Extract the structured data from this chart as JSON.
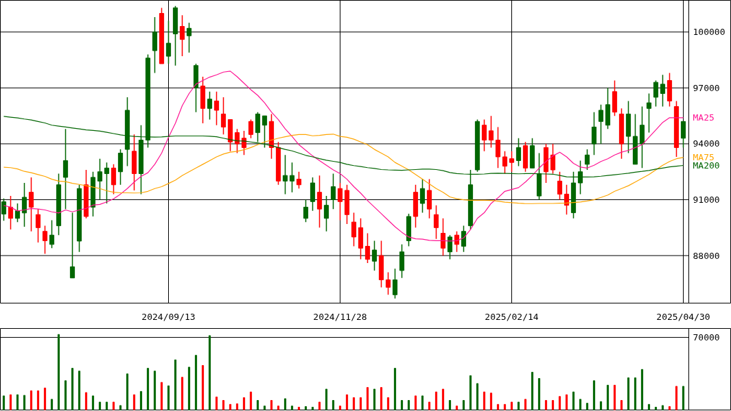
{
  "chart_data": [
    {
      "type": "candlestick",
      "categories": [
        null,
        null,
        null,
        null,
        null,
        null,
        null,
        null,
        null,
        null,
        null,
        null,
        null,
        null,
        null,
        null,
        null,
        null,
        null,
        null,
        null,
        null,
        null,
        null,
        "2024/09/13",
        null,
        null,
        null,
        null,
        null,
        null,
        null,
        null,
        null,
        null,
        null,
        null,
        null,
        null,
        null,
        null,
        null,
        null,
        null,
        null,
        null,
        null,
        null,
        null,
        "2024/11/28",
        null,
        null,
        null,
        null,
        null,
        null,
        null,
        null,
        null,
        null,
        null,
        null,
        null,
        null,
        null,
        null,
        null,
        null,
        null,
        null,
        null,
        null,
        null,
        null,
        "2025/02/14",
        null,
        null,
        null,
        null,
        null,
        null,
        null,
        null,
        null,
        null,
        null,
        null,
        null,
        null,
        null,
        null,
        null,
        null,
        null,
        null,
        null,
        null,
        null,
        null,
        "2025/04/30"
      ],
      "ylim": [
        85450,
        101700
      ],
      "yticks": [
        88000,
        91000,
        94000,
        97000,
        100000
      ],
      "grid": true,
      "series": [
        {
          "type": "candlestick",
          "ohlc": [
            [
              90230,
              91070,
              89870,
              90890
            ],
            [
              90600,
              91200,
              89400,
              90000
            ],
            [
              90000,
              90800,
              89800,
              90400
            ],
            [
              90290,
              91900,
              89550,
              91130
            ],
            [
              91400,
              92200,
              89300,
              90600
            ],
            [
              90200,
              90500,
              88700,
              89500
            ],
            [
              89300,
              89600,
              88100,
              88800
            ],
            [
              88600,
              89900,
              88400,
              89100
            ],
            [
              89600,
              92400,
              89100,
              91800
            ],
            [
              92200,
              94800,
              90500,
              93100
            ],
            [
              86800,
              90300,
              86800,
              87400
            ],
            [
              88780,
              91800,
              88200,
              91600
            ],
            [
              91800,
              92600,
              90000,
              90100
            ],
            [
              90600,
              92500,
              90100,
              92200
            ],
            [
              92000,
              93200,
              91000,
              92500
            ],
            [
              92400,
              93000,
              90800,
              92700
            ],
            [
              92700,
              92900,
              91300,
              91800
            ],
            [
              92500,
              93700,
              91800,
              93500
            ],
            [
              93700,
              96500,
              92800,
              95800
            ],
            [
              93600,
              94500,
              91500,
              92400
            ],
            [
              92400,
              95000,
              91300,
              94200
            ],
            [
              94200,
              98800,
              93800,
              98600
            ],
            [
              99000,
              100800,
              97800,
              100000
            ],
            [
              101000,
              101300,
              98300,
              98300
            ],
            [
              98700,
              100600,
              98300,
              99400
            ],
            [
              99900,
              101400,
              98200,
              101300
            ],
            [
              100300,
              100900,
              98700,
              99600
            ],
            [
              99800,
              100500,
              98900,
              100200
            ],
            [
              97000,
              98300,
              95700,
              98200
            ],
            [
              97100,
              97600,
              95100,
              95900
            ],
            [
              95900,
              96800,
              95300,
              96400
            ],
            [
              96300,
              96800,
              95000,
              95800
            ],
            [
              95600,
              96500,
              94500,
              94900
            ],
            [
              95300,
              95300,
              93600,
              94100
            ],
            [
              94600,
              94800,
              93500,
              94000
            ],
            [
              94300,
              94700,
              93400,
              93800
            ],
            [
              95200,
              95300,
              94300,
              94500
            ],
            [
              94600,
              95700,
              94100,
              95600
            ],
            [
              95000,
              95500,
              93800,
              95500
            ],
            [
              95200,
              95600,
              93200,
              93800
            ],
            [
              93800,
              94100,
              91800,
              92000
            ],
            [
              92000,
              93400,
              91300,
              92300
            ],
            [
              92000,
              93000,
              91400,
              92300
            ],
            [
              92100,
              92500,
              91600,
              91800
            ],
            [
              90000,
              91000,
              89800,
              90600
            ],
            [
              90900,
              92200,
              90400,
              91900
            ],
            [
              91400,
              92300,
              89500,
              90500
            ],
            [
              90000,
              91200,
              89300,
              90700
            ],
            [
              91000,
              92400,
              90500,
              91700
            ],
            [
              91600,
              91900,
              89900,
              90900
            ],
            [
              91500,
              91800,
              89700,
              90200
            ],
            [
              89800,
              90300,
              88500,
              89000
            ],
            [
              89500,
              90000,
              87800,
              88400
            ],
            [
              88500,
              89200,
              87600,
              87800
            ],
            [
              87700,
              88800,
              87200,
              88300
            ],
            [
              88000,
              88800,
              86300,
              86700
            ],
            [
              86700,
              87100,
              85900,
              86300
            ],
            [
              85900,
              87300,
              85700,
              86700
            ],
            [
              87200,
              88600,
              86800,
              88200
            ],
            [
              88800,
              90250,
              88500,
              90100
            ],
            [
              91400,
              91800,
              89500,
              90100
            ],
            [
              90800,
              92100,
              90300,
              91600
            ],
            [
              91500,
              92100,
              90000,
              90500
            ],
            [
              90200,
              90700,
              88900,
              89500
            ],
            [
              89200,
              90000,
              88000,
              88400
            ],
            [
              88200,
              89100,
              87800,
              89000
            ],
            [
              89100,
              89300,
              88200,
              88600
            ],
            [
              88500,
              89600,
              88200,
              89300
            ],
            [
              89600,
              92600,
              89400,
              91800
            ],
            [
              92600,
              95300,
              92500,
              95200
            ],
            [
              95000,
              95300,
              93600,
              94200
            ],
            [
              94700,
              95500,
              93800,
              94200
            ],
            [
              94200,
              94900,
              92700,
              93300
            ],
            [
              93300,
              93600,
              92400,
              92800
            ],
            [
              93200,
              93600,
              92500,
              93000
            ],
            [
              93100,
              94300,
              92800,
              93800
            ],
            [
              93900,
              94100,
              92500,
              92700
            ],
            [
              92700,
              94300,
              92700,
              93900
            ],
            [
              91200,
              93500,
              91000,
              92400
            ],
            [
              93800,
              94000,
              91900,
              92500
            ],
            [
              93400,
              94000,
              92400,
              92600
            ],
            [
              92000,
              92500,
              91000,
              91300
            ],
            [
              91300,
              91800,
              90200,
              90700
            ],
            [
              90300,
              92500,
              90000,
              91900
            ],
            [
              91900,
              93100,
              91300,
              92500
            ],
            [
              92900,
              93700,
              92600,
              93400
            ],
            [
              94000,
              95700,
              93400,
              94900
            ],
            [
              95200,
              96100,
              94000,
              95800
            ],
            [
              95000,
              97000,
              94800,
              96100
            ],
            [
              96800,
              97400,
              95500,
              95700
            ],
            [
              95600,
              95900,
              93200,
              94000
            ],
            [
              94400,
              96300,
              93500,
              95600
            ],
            [
              92900,
              95600,
              92900,
              94400
            ],
            [
              94000,
              96000,
              92700,
              95000
            ],
            [
              95900,
              96700,
              94600,
              96200
            ],
            [
              96500,
              97400,
              96000,
              97300
            ],
            [
              96700,
              97700,
              96000,
              97200
            ],
            [
              97400,
              97800,
              96000,
              96300
            ],
            [
              96000,
              96300,
              93300,
              93800
            ],
            [
              94300,
              95200,
              93800,
              95200
            ]
          ],
          "colors": [
            "#006600",
            "#ff0000",
            "#006600",
            "#006600",
            "#ff0000",
            "#ff0000",
            "#ff0000",
            "#006600",
            "#006600",
            "#006600",
            "#006600",
            "#006600",
            "#ff0000",
            "#006600",
            "#006600",
            "#006600",
            "#ff0000",
            "#006600",
            "#006600",
            "#ff0000",
            "#006600",
            "#006600",
            "#006600",
            "#ff0000",
            "#006600",
            "#006600",
            "#ff0000",
            "#006600",
            "#006600",
            "#ff0000",
            "#006600",
            "#ff0000",
            "#ff0000",
            "#ff0000",
            "#ff0000",
            "#ff0000",
            "#ff0000",
            "#006600",
            "#006600",
            "#ff0000",
            "#ff0000",
            "#006600",
            "#006600",
            "#ff0000",
            "#006600",
            "#006600",
            "#ff0000",
            "#006600",
            "#006600",
            "#ff0000",
            "#ff0000",
            "#ff0000",
            "#ff0000",
            "#ff0000",
            "#006600",
            "#ff0000",
            "#ff0000",
            "#006600",
            "#006600",
            "#006600",
            "#ff0000",
            "#006600",
            "#ff0000",
            "#ff0000",
            "#ff0000",
            "#006600",
            "#ff0000",
            "#006600",
            "#006600",
            "#006600",
            "#ff0000",
            "#ff0000",
            "#ff0000",
            "#ff0000",
            "#ff0000",
            "#006600",
            "#ff0000",
            "#006600",
            "#006600",
            "#ff0000",
            "#ff0000",
            "#ff0000",
            "#ff0000",
            "#006600",
            "#006600",
            "#006600",
            "#006600",
            "#006600",
            "#006600",
            "#ff0000",
            "#ff0000",
            "#006600",
            "#006600",
            "#006600",
            "#006600",
            "#006600",
            "#006600",
            "#ff0000",
            "#ff0000",
            "#006600"
          ]
        },
        {
          "type": "line",
          "name": "MA25",
          "color": "#ff1493",
          "values": [
            90690,
            90600,
            90400,
            90450,
            90530,
            90500,
            90450,
            90350,
            90290,
            90450,
            90350,
            90450,
            90530,
            90710,
            90750,
            90880,
            91050,
            91300,
            91600,
            91950,
            92250,
            92450,
            92900,
            93500,
            94350,
            95100,
            96050,
            96700,
            97200,
            97400,
            97580,
            97700,
            97850,
            97900,
            97600,
            97250,
            96900,
            96600,
            96200,
            95700,
            95300,
            94800,
            94400,
            93950,
            93650,
            93350,
            93100,
            92850,
            92600,
            92400,
            92100,
            91700,
            91350,
            90950,
            90600,
            90250,
            89900,
            89550,
            89250,
            89000,
            88900,
            88880,
            88820,
            88800,
            88800,
            88780,
            88800,
            88950,
            89400,
            90000,
            90300,
            90800,
            91100,
            91450,
            91550,
            91650,
            91950,
            92300,
            92700,
            93050,
            93350,
            93550,
            93300,
            92950,
            92750,
            92700,
            92850,
            93050,
            93200,
            93400,
            93550,
            93650,
            93800,
            93950,
            94350,
            94750,
            95150,
            95400,
            95400,
            95400
          ]
        },
        {
          "type": "line",
          "name": "MA75",
          "color": "#ffa500",
          "values": [
            92740,
            92720,
            92650,
            92520,
            92450,
            92350,
            92250,
            92100,
            92000,
            91970,
            91880,
            91820,
            91750,
            91680,
            91600,
            91480,
            91400,
            91370,
            91370,
            91360,
            91370,
            91450,
            91600,
            91700,
            91870,
            92050,
            92300,
            92500,
            92700,
            92900,
            93100,
            93300,
            93450,
            93550,
            93600,
            93680,
            93800,
            93950,
            94100,
            94200,
            94300,
            94380,
            94450,
            94500,
            94500,
            94430,
            94450,
            94500,
            94520,
            94400,
            94350,
            94250,
            94100,
            93950,
            93700,
            93500,
            93300,
            93000,
            92800,
            92600,
            92350,
            92100,
            91850,
            91600,
            91400,
            91150,
            91050,
            91000,
            90970,
            90970,
            90970,
            90960,
            90920,
            90870,
            90840,
            90810,
            90790,
            90790,
            90800,
            90800,
            90800,
            90810,
            90820,
            90850,
            90880,
            90930,
            91000,
            91120,
            91250,
            91450,
            91600,
            91750,
            91950,
            92150,
            92350,
            92600,
            92850,
            93050,
            93200,
            93270
          ]
        },
        {
          "type": "line",
          "name": "MA200",
          "color": "#006400",
          "values": [
            95470,
            95430,
            95390,
            95330,
            95280,
            95200,
            95120,
            95000,
            94950,
            94900,
            94850,
            94800,
            94750,
            94720,
            94680,
            94620,
            94550,
            94480,
            94430,
            94400,
            94380,
            94370,
            94360,
            94370,
            94400,
            94420,
            94420,
            94420,
            94420,
            94420,
            94410,
            94380,
            94300,
            94220,
            94160,
            94150,
            94100,
            94050,
            93980,
            93900,
            93800,
            93700,
            93620,
            93500,
            93380,
            93300,
            93200,
            93120,
            93060,
            93000,
            92900,
            92830,
            92780,
            92720,
            92680,
            92620,
            92600,
            92590,
            92580,
            92600,
            92620,
            92640,
            92640,
            92620,
            92560,
            92460,
            92400,
            92380,
            92370,
            92370,
            92380,
            92410,
            92420,
            92410,
            92400,
            92390,
            92400,
            92400,
            92390,
            92380,
            92370,
            92300,
            92230,
            92220,
            92220,
            92220,
            92230,
            92260,
            92300,
            92340,
            92380,
            92420,
            92480,
            92520,
            92570,
            92640,
            92700,
            92760,
            92800,
            92840
          ]
        }
      ]
    },
    {
      "type": "bar",
      "categories": [
        null,
        null,
        null,
        null,
        null,
        null,
        null,
        null,
        null,
        null,
        null,
        null,
        null,
        null,
        null,
        null,
        null,
        null,
        null,
        null,
        null,
        null,
        null,
        null,
        null,
        null,
        null,
        null,
        null,
        null,
        null,
        null,
        null,
        null,
        null,
        null,
        null,
        null,
        null,
        null,
        null,
        null,
        null,
        null,
        null,
        null,
        null,
        null,
        null,
        null,
        null,
        null,
        null,
        null,
        null,
        null,
        null,
        null,
        null,
        null,
        null,
        null,
        null,
        null,
        null,
        null,
        null,
        null,
        null,
        null,
        null,
        null,
        null,
        null,
        null,
        null,
        null,
        null,
        null,
        null,
        null,
        null,
        null,
        null,
        null,
        null,
        null,
        null,
        null,
        null,
        null,
        null,
        null,
        null,
        null,
        null,
        null,
        null,
        null,
        null
      ],
      "ylim": [
        0,
        78600
      ],
      "yticks": [
        {
          "value": 0,
          "label": null
        },
        70000
      ],
      "grid": "y",
      "tick_labels": "y",
      "values": [
        13600,
        14700,
        14700,
        14100,
        18500,
        18500,
        21200,
        10300,
        72800,
        28200,
        40200,
        37500,
        16800,
        13600,
        7600,
        7600,
        7600,
        4300,
        34800,
        14700,
        17900,
        40200,
        37500,
        26600,
        23300,
        48300,
        31500,
        41300,
        52700,
        42900,
        71700,
        12500,
        9200,
        5400,
        6000,
        11900,
        17400,
        9200,
        3800,
        9200,
        3800,
        10900,
        3800,
        2700,
        3300,
        2700,
        7600,
        20100,
        9200,
        3800,
        14700,
        11900,
        11900,
        21700,
        20100,
        21700,
        11900,
        40200,
        9200,
        9200,
        13600,
        13600,
        7600,
        17400,
        20100,
        9200,
        3800,
        9200,
        33100,
        25500,
        17400,
        16300,
        5400,
        5400,
        7600,
        7600,
        10300,
        36400,
        30400,
        9200,
        9200,
        13000,
        14700,
        17400,
        10300,
        6500,
        28200,
        8100,
        23900,
        23900,
        9200,
        31000,
        31000,
        39100,
        5400,
        2700,
        4300,
        3300,
        22800,
        22800
      ],
      "colors": [
        "#006600",
        "#ff0000",
        "#006600",
        "#006600",
        "#ff0000",
        "#ff0000",
        "#ff0000",
        "#006600",
        "#006600",
        "#006600",
        "#006600",
        "#006600",
        "#ff0000",
        "#006600",
        "#006600",
        "#006600",
        "#ff0000",
        "#006600",
        "#006600",
        "#ff0000",
        "#006600",
        "#006600",
        "#006600",
        "#ff0000",
        "#006600",
        "#006600",
        "#ff0000",
        "#006600",
        "#006600",
        "#ff0000",
        "#006600",
        "#ff0000",
        "#ff0000",
        "#ff0000",
        "#ff0000",
        "#ff0000",
        "#ff0000",
        "#006600",
        "#006600",
        "#ff0000",
        "#ff0000",
        "#006600",
        "#006600",
        "#ff0000",
        "#006600",
        "#006600",
        "#ff0000",
        "#006600",
        "#006600",
        "#ff0000",
        "#ff0000",
        "#ff0000",
        "#ff0000",
        "#ff0000",
        "#006600",
        "#ff0000",
        "#ff0000",
        "#006600",
        "#006600",
        "#006600",
        "#ff0000",
        "#006600",
        "#ff0000",
        "#ff0000",
        "#ff0000",
        "#006600",
        "#ff0000",
        "#006600",
        "#006600",
        "#006600",
        "#ff0000",
        "#ff0000",
        "#ff0000",
        "#ff0000",
        "#ff0000",
        "#006600",
        "#ff0000",
        "#006600",
        "#006600",
        "#ff0000",
        "#ff0000",
        "#ff0000",
        "#ff0000",
        "#006600",
        "#006600",
        "#006600",
        "#006600",
        "#006600",
        "#006600",
        "#ff0000",
        "#ff0000",
        "#006600",
        "#006600",
        "#006600",
        "#006600",
        "#006600",
        "#006600",
        "#ff0000",
        "#ff0000",
        "#006600"
      ]
    }
  ]
}
